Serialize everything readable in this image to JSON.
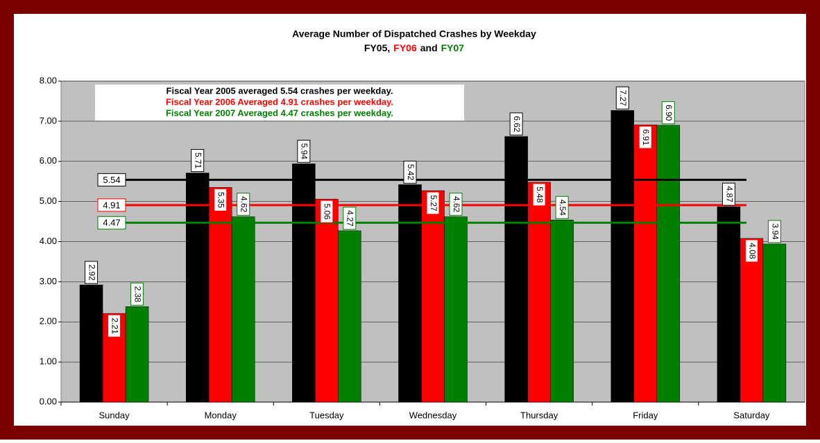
{
  "chart_data": {
    "type": "bar",
    "title": "Average Number of Dispatched Crashes by Weekday",
    "subtitle_parts": [
      {
        "text": "FY05,",
        "color": "#000000"
      },
      {
        "text": "FY06",
        "color": "#ff0000"
      },
      {
        "text": "and",
        "color": "#000000"
      },
      {
        "text": "FY07",
        "color": "#008000"
      }
    ],
    "categories": [
      "Sunday",
      "Monday",
      "Tuesday",
      "Wednesday",
      "Thursday",
      "Friday",
      "Saturday"
    ],
    "series": [
      {
        "color": "#000000",
        "values": [
          2.92,
          5.71,
          5.94,
          5.42,
          6.62,
          7.27,
          4.87
        ],
        "value_labels": [
          "2.92",
          "5.71",
          "5.94",
          "5.42",
          "6.62",
          "7.27",
          "4.87"
        ]
      },
      {
        "color": "#ff0000",
        "values": [
          2.21,
          5.35,
          5.06,
          5.27,
          5.48,
          6.91,
          4.08
        ],
        "value_labels": [
          "2.21",
          "5.35",
          "5.06",
          "5.27",
          "5.48",
          "6.91",
          "4.08"
        ]
      },
      {
        "color": "#008000",
        "values": [
          2.38,
          4.62,
          4.27,
          4.62,
          4.54,
          6.9,
          3.94
        ],
        "value_labels": [
          "2.38",
          "4.62",
          "4.27",
          "4.62",
          "4.54",
          "6.90",
          "3.94"
        ]
      }
    ],
    "averages": [
      {
        "value": 5.54,
        "label": "5.54",
        "color": "#000000"
      },
      {
        "value": 4.91,
        "label": "4.91",
        "color": "#ff0000"
      },
      {
        "value": 4.47,
        "label": "4.47",
        "color": "#008000"
      }
    ],
    "annotations": [
      {
        "text": "Fiscal Year 2005 averaged 5.54 crashes per weekday.",
        "color": "#000000"
      },
      {
        "text": "Fiscal Year 2006 Averaged 4.91 crashes per weekday.",
        "color": "#ff0000"
      },
      {
        "text": "Fiscal Year 2007 Averaged 4.47 crashes per weekday.",
        "color": "#008000"
      }
    ],
    "ylim": [
      0,
      8
    ],
    "yticks": [
      {
        "value": 0,
        "label": "0.00"
      },
      {
        "value": 1,
        "label": "1.00"
      },
      {
        "value": 2,
        "label": "2.00"
      },
      {
        "value": 3,
        "label": "3.00"
      },
      {
        "value": 4,
        "label": "4.00"
      },
      {
        "value": 5,
        "label": "5.00"
      },
      {
        "value": 6,
        "label": "6.00"
      },
      {
        "value": 7,
        "label": "7.00"
      },
      {
        "value": 8,
        "label": "8.00"
      }
    ],
    "grid": true,
    "plot_background": "#c0c0c0"
  }
}
